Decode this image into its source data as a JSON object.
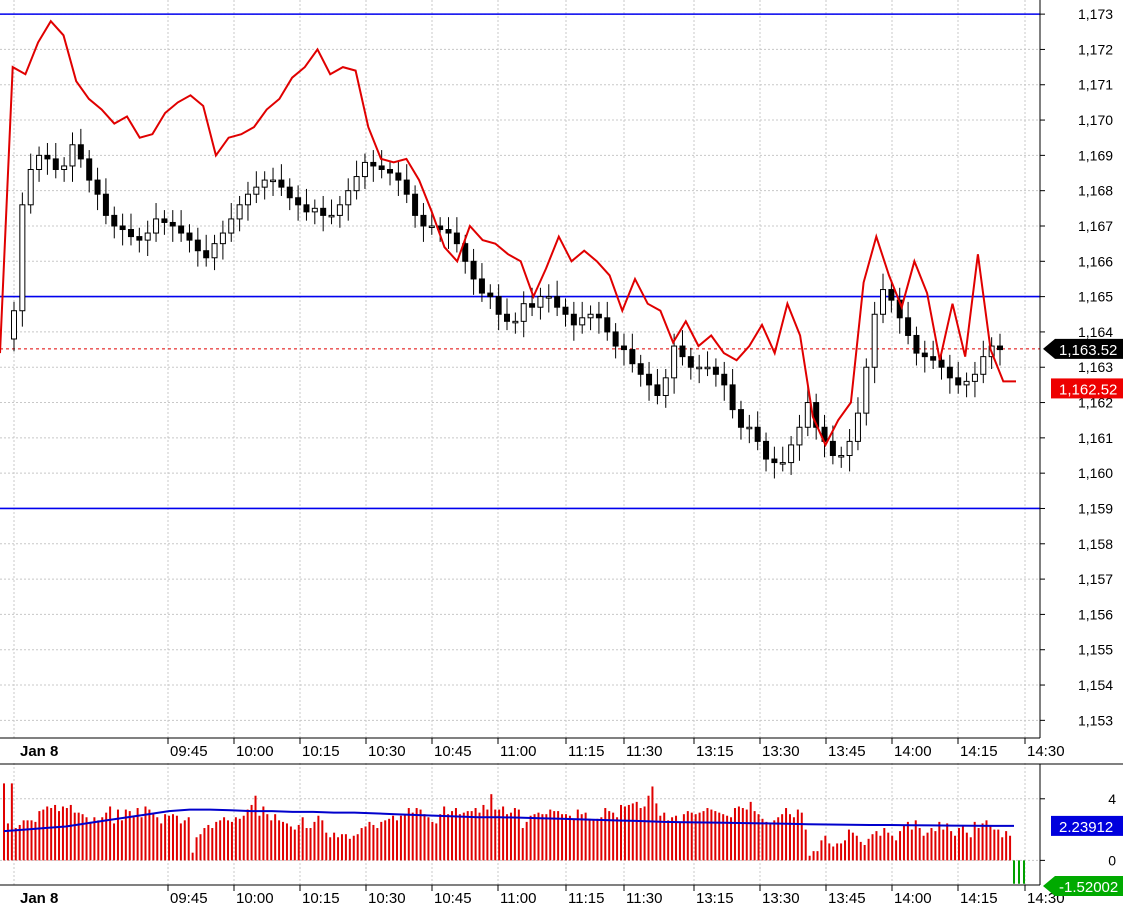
{
  "colors": {
    "background": "#ffffff",
    "grid": "#c8c8c8",
    "level_line": "#0000ee",
    "price_line": "#e00000",
    "dashed_line": "#e00000",
    "candle_up": "#ffffff",
    "candle_down": "#000000",
    "volume_bar": "#e00000",
    "volume_ma": "#0000cc",
    "negative_bar": "#00a000",
    "badge_price": "#000000",
    "badge_red": "#ee0000",
    "badge_blue": "#0000dd",
    "badge_green": "#00aa00"
  },
  "chart_data": [
    {
      "type": "candlestick",
      "title": "",
      "x_ticks": [
        "09:45",
        "10:00",
        "10:15",
        "10:30",
        "10:45",
        "11:00",
        "11:15",
        "11:30",
        "13:15",
        "13:30",
        "13:45",
        "14:00",
        "14:15",
        "14:30"
      ],
      "date_label": "Jan 8",
      "y_ticks": [
        "1,153",
        "1,154",
        "1,155",
        "1,156",
        "1,157",
        "1,158",
        "1,159",
        "1,160",
        "1,161",
        "1,162",
        "1,163",
        "1,164",
        "1,165",
        "1,166",
        "1,167",
        "1,168",
        "1,169",
        "1,170",
        "1,171",
        "1,172",
        "1,173"
      ],
      "ylim": [
        1152.5,
        1173.4
      ],
      "horizontal_levels": [
        1173.0,
        1165.0,
        1159.0
      ],
      "dashed_level": 1163.52,
      "last_price_badge": "1,163.52",
      "red_badge": "1,162.52",
      "grid": true,
      "close_series": [
        1164.6,
        1167.6,
        1168.6,
        1169.0,
        1168.9,
        1168.6,
        1168.7,
        1169.3,
        1168.9,
        1168.3,
        1167.9,
        1167.3,
        1167.0,
        1166.9,
        1166.7,
        1166.6,
        1166.8,
        1167.2,
        1167.1,
        1167.0,
        1166.8,
        1166.6,
        1166.3,
        1166.1,
        1166.5,
        1166.8,
        1167.2,
        1167.6,
        1167.9,
        1168.1,
        1168.3,
        1168.3,
        1168.1,
        1167.8,
        1167.6,
        1167.4,
        1167.5,
        1167.3,
        1167.3,
        1167.6,
        1168.0,
        1168.4,
        1168.8,
        1168.7,
        1168.6,
        1168.5,
        1168.3,
        1167.9,
        1167.3,
        1167.0,
        1167.0,
        1166.9,
        1166.8,
        1166.5,
        1166.0,
        1165.5,
        1165.1,
        1165.0,
        1164.5,
        1164.3,
        1164.3,
        1164.8,
        1164.7,
        1165.0,
        1165.0,
        1164.7,
        1164.5,
        1164.2,
        1164.4,
        1164.5,
        1164.4,
        1164.0,
        1163.6,
        1163.5,
        1163.1,
        1162.8,
        1162.5,
        1162.2,
        1162.7,
        1163.6,
        1163.3,
        1163.0,
        1163.0,
        1163.0,
        1162.8,
        1162.5,
        1161.8,
        1161.3,
        1161.3,
        1160.9,
        1160.4,
        1160.3,
        1160.3,
        1160.8,
        1161.3,
        1162.0,
        1161.3,
        1160.9,
        1160.5,
        1160.5,
        1160.9,
        1161.7,
        1163.0,
        1164.5,
        1165.2,
        1164.9,
        1164.4,
        1163.9,
        1163.4,
        1163.3,
        1163.2,
        1163.0,
        1162.7,
        1162.5,
        1162.6,
        1162.8,
        1163.3,
        1163.6,
        1163.5
      ]
    },
    {
      "type": "line",
      "series": [
        {
          "color": "#e00000",
          "values": [
            1163.4,
            1171.5,
            1171.3,
            1172.2,
            1172.8,
            1172.4,
            1171.1,
            1170.6,
            1170.3,
            1169.9,
            1170.1,
            1169.5,
            1169.6,
            1170.2,
            1170.5,
            1170.7,
            1170.4,
            1169.0,
            1169.5,
            1169.6,
            1169.8,
            1170.3,
            1170.6,
            1171.2,
            1171.5,
            1172.0,
            1171.3,
            1171.5,
            1171.4,
            1169.8,
            1168.9,
            1168.8,
            1168.9,
            1168.3,
            1167.4,
            1166.4,
            1166.0,
            1167.0,
            1166.6,
            1166.5,
            1166.2,
            1166.0,
            1165.0,
            1165.8,
            1166.7,
            1166.0,
            1166.3,
            1166.0,
            1165.6,
            1164.6,
            1165.5,
            1164.8,
            1164.6,
            1163.7,
            1164.3,
            1163.6,
            1163.9,
            1163.4,
            1163.2,
            1163.6,
            1164.2,
            1163.4,
            1164.8,
            1163.9,
            1161.6,
            1160.8,
            1161.5,
            1162.0,
            1165.4,
            1166.7,
            1165.6,
            1164.7,
            1166.0,
            1165.1,
            1163.2,
            1164.8,
            1163.3,
            1166.2,
            1163.5,
            1162.6,
            1162.6
          ]
        }
      ]
    },
    {
      "type": "bar",
      "title": "",
      "y_ticks": [
        "0",
        "4"
      ],
      "ylim": [
        -1.6,
        6.0
      ],
      "ma_badge": "2.23912",
      "neg_badge": "-1.52002",
      "ma_value": 2.23912,
      "last_value": -1.52002,
      "x_ticks": [
        "09:45",
        "10:00",
        "10:15",
        "10:30",
        "10:45",
        "11:00",
        "11:15",
        "11:30",
        "13:15",
        "13:30",
        "13:45",
        "14:00",
        "14:15",
        "14:30"
      ],
      "date_label": "Jan 8",
      "values": [
        5.0,
        2.4,
        5.0,
        2.1,
        2.3,
        2.6,
        2.6,
        2.6,
        2.5,
        3.2,
        3.3,
        3.5,
        3.4,
        3.6,
        3.2,
        3.5,
        3.4,
        3.6,
        3.1,
        3.1,
        3.0,
        2.8,
        2.5,
        2.8,
        2.6,
        2.8,
        3.1,
        3.5,
        2.4,
        3.3,
        2.6,
        3.3,
        3.2,
        2.8,
        3.4,
        2.8,
        3.5,
        3.3,
        3.0,
        2.8,
        2.4,
        3.0,
        2.9,
        3.0,
        2.9,
        2.4,
        2.6,
        2.8,
        0.5,
        1.5,
        1.7,
        2.1,
        2.3,
        2.1,
        2.5,
        2.6,
        2.8,
        2.6,
        2.5,
        2.8,
        2.7,
        2.9,
        3.3,
        3.6,
        4.2,
        2.9,
        3.5,
        3.0,
        2.6,
        3.0,
        2.6,
        2.5,
        2.4,
        2.2,
        2.0,
        2.3,
        2.8,
        2.1,
        2.1,
        2.5,
        2.9,
        2.6,
        1.8,
        1.5,
        1.8,
        1.5,
        1.7,
        1.7,
        1.4,
        1.6,
        1.7,
        2.1,
        2.2,
        2.5,
        2.3,
        2.1,
        2.5,
        2.6,
        2.7,
        2.9,
        2.6,
        2.9,
        3.0,
        3.4,
        3.1,
        3.4,
        3.3,
        3.0,
        2.8,
        2.5,
        2.4,
        3.0,
        3.5,
        3.0,
        3.2,
        3.4,
        3.0,
        3.1,
        3.2,
        3.2,
        3.4,
        3.1,
        3.6,
        3.3,
        4.3,
        3.3,
        3.3,
        3.5,
        3.0,
        3.1,
        3.4,
        3.3,
        2.1,
        2.5,
        2.9,
        3.0,
        3.1,
        3.0,
        3.0,
        3.3,
        3.2,
        3.2,
        3.0,
        3.0,
        2.9,
        2.7,
        3.3,
        3.0,
        3.1,
        2.7,
        2.6,
        2.7,
        2.8,
        3.4,
        3.2,
        3.1,
        2.8,
        3.6,
        3.5,
        3.6,
        3.7,
        3.8,
        3.4,
        3.5,
        4.2,
        4.8,
        3.7,
        2.9,
        3.1,
        2.6,
        2.8,
        2.9,
        2.5,
        3.0,
        3.2,
        3.1,
        3.0,
        3.1,
        3.2,
        3.4,
        3.3,
        3.2,
        3.1,
        3.0,
        2.9,
        2.8,
        3.4,
        3.5,
        3.4,
        3.3,
        3.8,
        3.2,
        3.0,
        2.7,
        2.5,
        2.4,
        2.6,
        2.8,
        3.0,
        3.4,
        3.0,
        2.8,
        3.3,
        3.1,
        2.0,
        0.3,
        0.6,
        0.6,
        1.3,
        1.6,
        1.1,
        0.9,
        1.1,
        1.1,
        1.3,
        2.0,
        1.8,
        1.6,
        1.2,
        1.0,
        1.4,
        1.7,
        1.9,
        1.6,
        2.1,
        1.8,
        1.6,
        1.3,
        1.9,
        2.3,
        2.5,
        2.0,
        2.6,
        2.1,
        1.6,
        1.8,
        2.1,
        1.9,
        2.5,
        2.0,
        2.4,
        1.9,
        1.6,
        2.1,
        2.2,
        1.8,
        1.5,
        2.5,
        2.1,
        2.4,
        2.6,
        2.3,
        2.0,
        2.0,
        1.5,
        1.9,
        1.6,
        -1.52
      ],
      "ma_values": [
        1.9,
        2.0,
        2.1,
        2.2,
        2.4,
        2.6,
        2.8,
        3.0,
        3.2,
        3.3,
        3.3,
        3.25,
        3.2,
        3.2,
        3.15,
        3.15,
        3.1,
        3.1,
        3.05,
        3.0,
        2.95,
        2.9,
        2.85,
        2.8,
        2.8,
        2.78,
        2.74,
        2.7,
        2.66,
        2.62,
        2.58,
        2.55,
        2.5,
        2.48,
        2.46,
        2.44,
        2.42,
        2.4,
        2.38,
        2.35,
        2.33,
        2.32,
        2.3,
        2.3,
        2.28,
        2.27,
        2.26,
        2.25,
        2.24,
        2.24
      ]
    }
  ]
}
